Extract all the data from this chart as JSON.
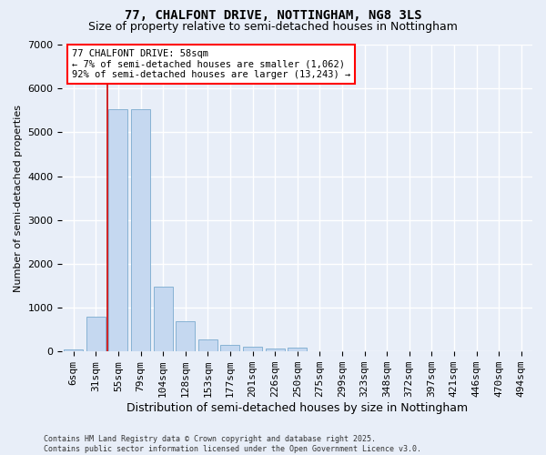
{
  "title": "77, CHALFONT DRIVE, NOTTINGHAM, NG8 3LS",
  "subtitle": "Size of property relative to semi-detached houses in Nottingham",
  "xlabel": "Distribution of semi-detached houses by size in Nottingham",
  "ylabel": "Number of semi-detached properties",
  "categories": [
    "6sqm",
    "31sqm",
    "55sqm",
    "79sqm",
    "104sqm",
    "128sqm",
    "153sqm",
    "177sqm",
    "201sqm",
    "226sqm",
    "250sqm",
    "275sqm",
    "299sqm",
    "323sqm",
    "348sqm",
    "372sqm",
    "397sqm",
    "421sqm",
    "446sqm",
    "470sqm",
    "494sqm"
  ],
  "values": [
    50,
    800,
    5530,
    5530,
    1480,
    680,
    270,
    160,
    100,
    75,
    80,
    0,
    0,
    0,
    0,
    0,
    0,
    0,
    0,
    0,
    0
  ],
  "bar_color": "#c5d8f0",
  "bar_edge_color": "#7aabcf",
  "highlight_color": "#cc0000",
  "highlight_index": 2,
  "annotation_text": "77 CHALFONT DRIVE: 58sqm\n← 7% of semi-detached houses are smaller (1,062)\n92% of semi-detached houses are larger (13,243) →",
  "footer": "Contains HM Land Registry data © Crown copyright and database right 2025.\nContains public sector information licensed under the Open Government Licence v3.0.",
  "ylim": [
    0,
    7000
  ],
  "yticks": [
    0,
    1000,
    2000,
    3000,
    4000,
    5000,
    6000,
    7000
  ],
  "background_color": "#e8eef8",
  "plot_background": "#e8eef8",
  "grid_color": "#ffffff",
  "title_fontsize": 10,
  "subtitle_fontsize": 9,
  "ylabel_fontsize": 8,
  "xlabel_fontsize": 9,
  "tick_fontsize": 8,
  "annotation_fontsize": 7.5,
  "footer_fontsize": 6
}
